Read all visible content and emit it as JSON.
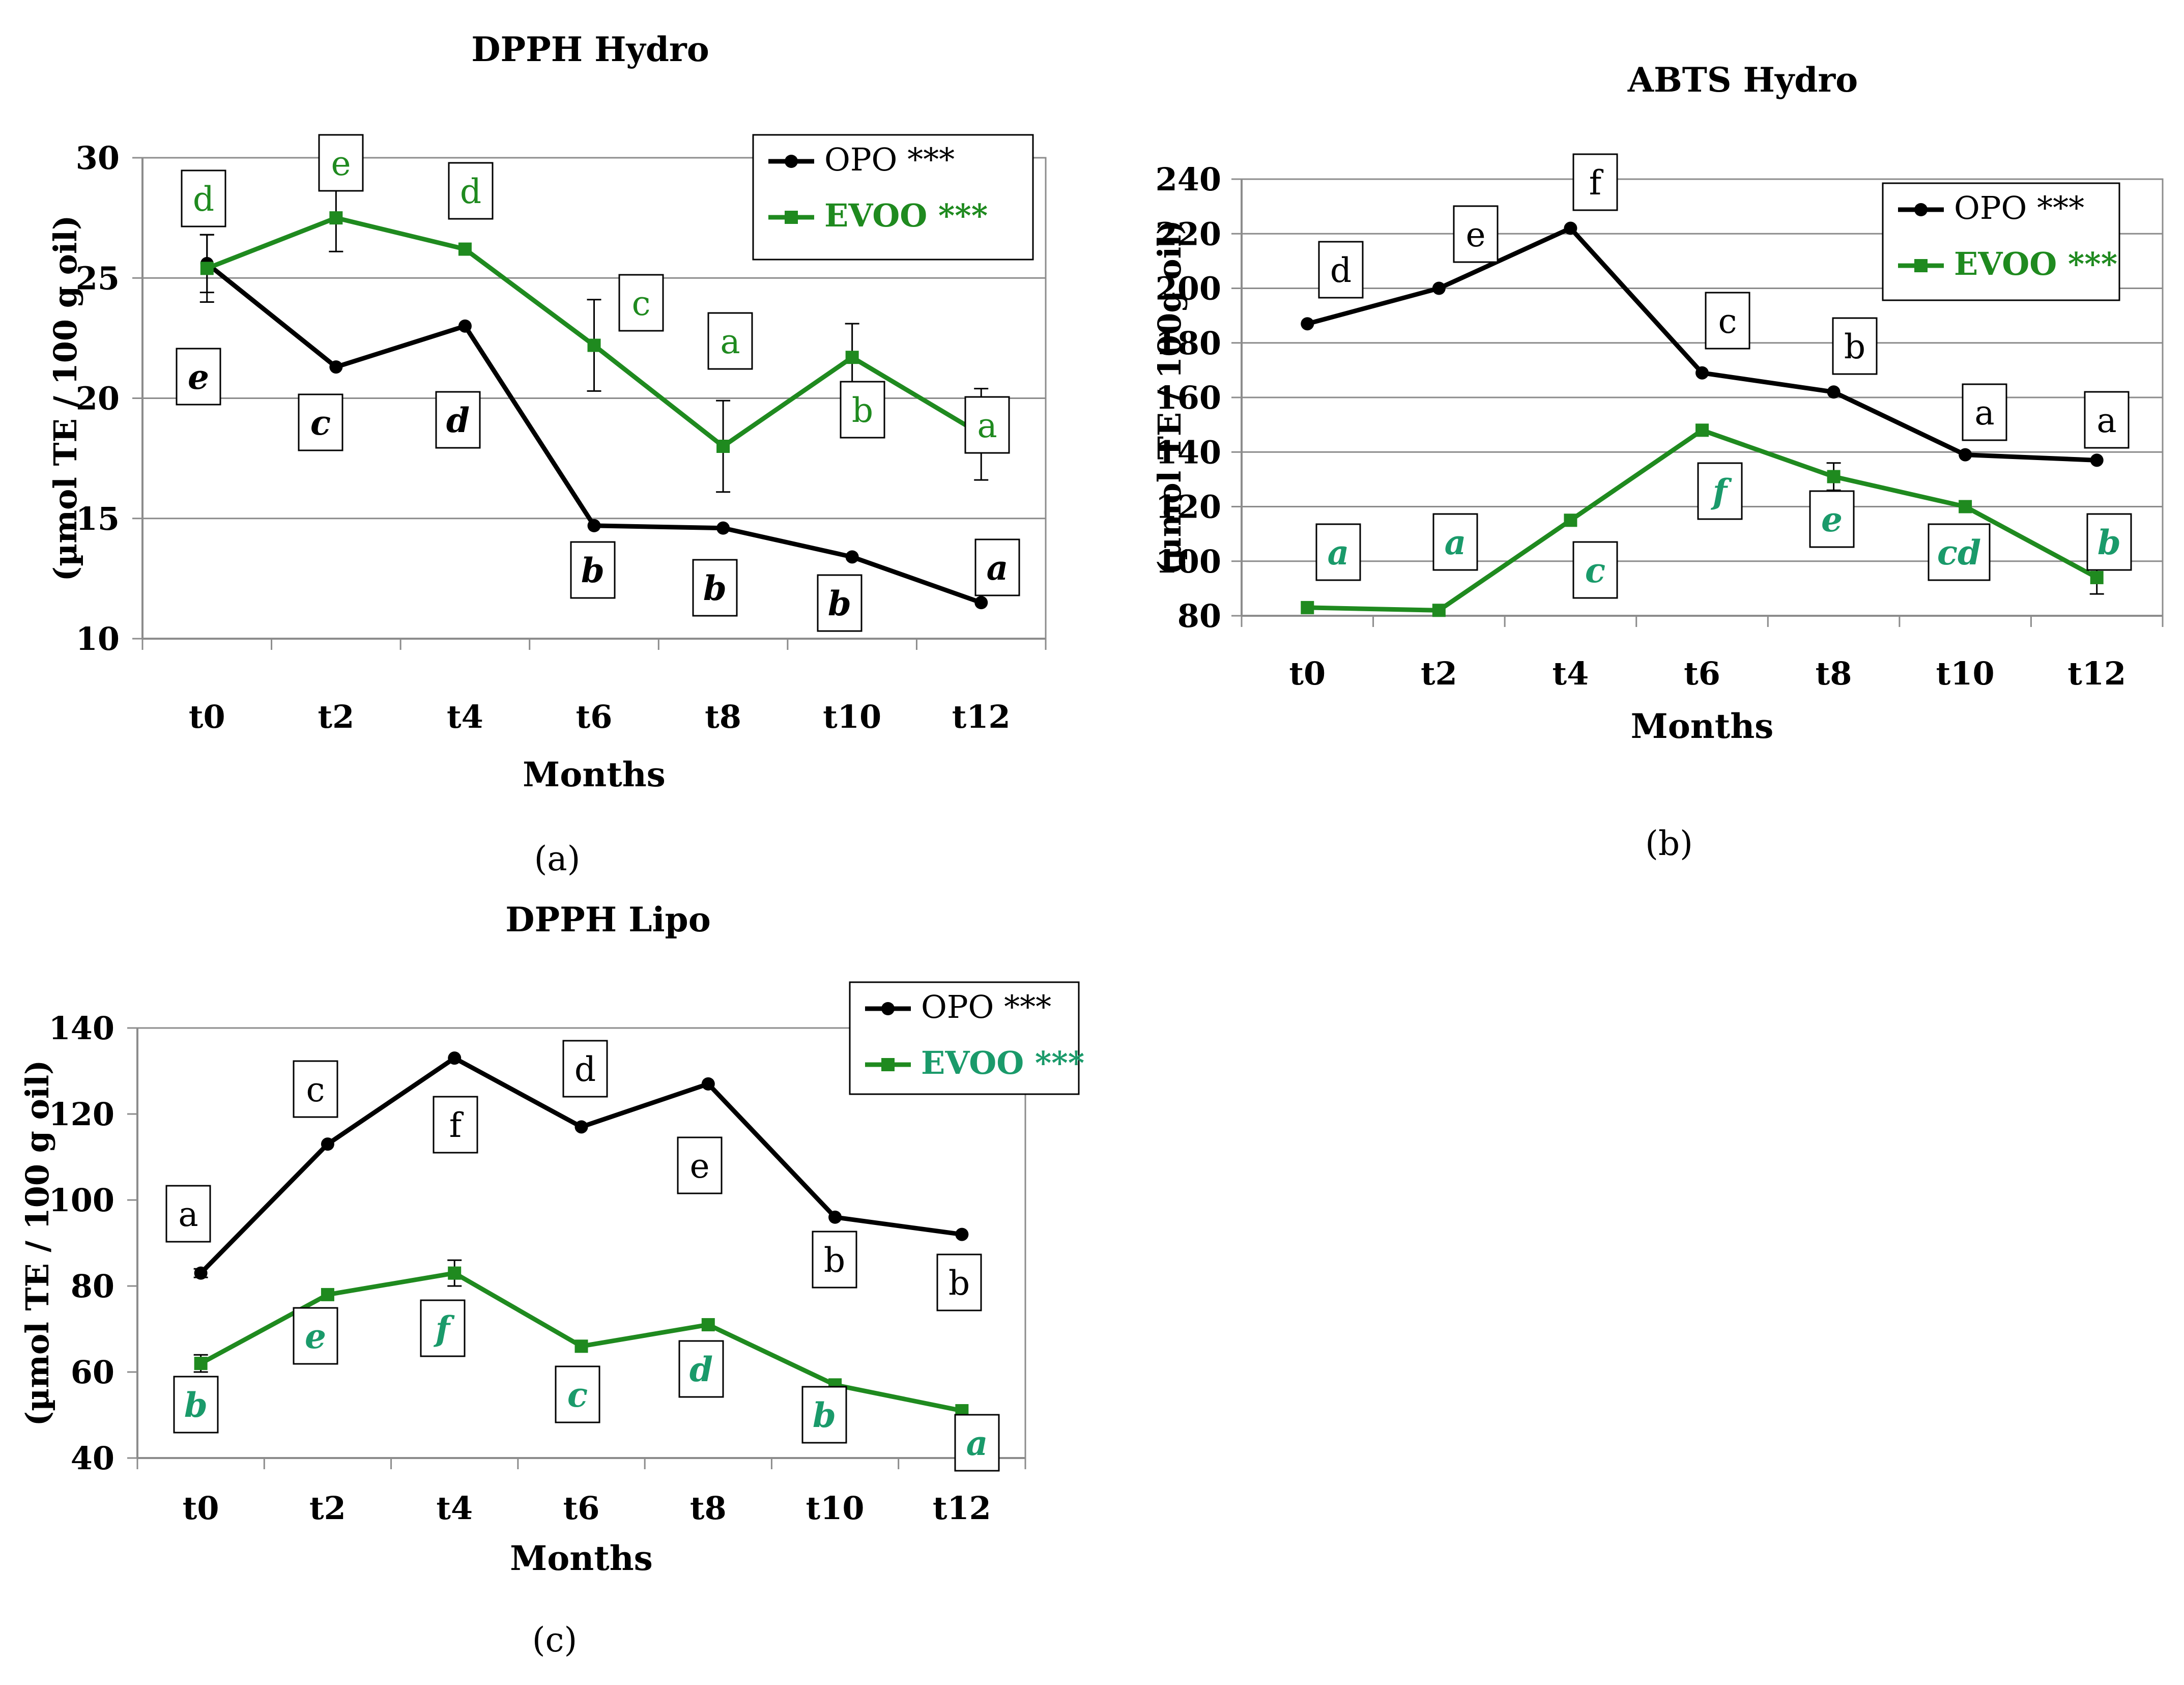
{
  "colors": {
    "opo": "#000000",
    "evoo": "#1f8a1f",
    "evoo_label_alt": "#1a9a6a",
    "grid": "#8c8c8c",
    "axis": "#8c8c8c"
  },
  "chart_data": [
    {
      "type": "line",
      "title": "DPPH Hydro",
      "panel_label": "(a)",
      "xlabel": "Months",
      "ylabel": "(µmol TE / 100 g oil)",
      "categories": [
        "t0",
        "t2",
        "t4",
        "t6",
        "t8",
        "t10",
        "t12"
      ],
      "ylim": [
        10,
        30
      ],
      "yticks": [
        10,
        15,
        20,
        25,
        30
      ],
      "grid": true,
      "legend_position": "top-right",
      "series": [
        {
          "name": "OPO ***",
          "key": "opo",
          "marker": "circle",
          "values": [
            25.6,
            21.3,
            23.0,
            14.7,
            14.6,
            13.4,
            11.5
          ],
          "errors": [
            1.2,
            0,
            0,
            0,
            0,
            0,
            0
          ],
          "letters": [
            "e",
            "c",
            "d",
            "b",
            "b",
            "b",
            "a"
          ],
          "letters_italic": true
        },
        {
          "name": "EVOO ***",
          "key": "evoo",
          "marker": "square",
          "values": [
            25.4,
            27.5,
            26.2,
            22.2,
            18.0,
            21.7,
            18.5
          ],
          "errors": [
            1.4,
            1.4,
            0,
            1.9,
            1.9,
            1.4,
            1.9
          ],
          "letters": [
            "d",
            "e",
            "d",
            "c",
            "a",
            "b",
            "a"
          ],
          "letters_italic": false
        }
      ]
    },
    {
      "type": "line",
      "title": "ABTS Hydro",
      "panel_label": "(b)",
      "xlabel": "Months",
      "ylabel": "(µmol TE / 100g oil)",
      "categories": [
        "t0",
        "t2",
        "t4",
        "t6",
        "t8",
        "t10",
        "t12"
      ],
      "ylim": [
        80,
        240
      ],
      "yticks": [
        80,
        100,
        120,
        140,
        160,
        180,
        200,
        220,
        240
      ],
      "grid": true,
      "legend_position": "top-right",
      "series": [
        {
          "name": "OPO ***",
          "key": "opo",
          "marker": "circle",
          "values": [
            187,
            200,
            222,
            169,
            162,
            139,
            137
          ],
          "errors": [
            0,
            0,
            0,
            0,
            0,
            0,
            0
          ],
          "letters": [
            "d",
            "e",
            "f",
            "c",
            "b",
            "a",
            "a"
          ],
          "letters_italic": false
        },
        {
          "name": "EVOO ***",
          "key": "evoo",
          "marker": "square",
          "values": [
            83,
            82,
            115,
            148,
            131,
            120,
            94
          ],
          "errors": [
            0,
            0,
            0,
            0,
            5,
            0,
            6
          ],
          "letters": [
            "a",
            "a",
            "c",
            "f",
            "e",
            "cd",
            "b"
          ],
          "letters_italic": true
        }
      ]
    },
    {
      "type": "line",
      "title": "DPPH Lipo",
      "panel_label": "(c)",
      "xlabel": "Months",
      "ylabel": "(µmol TE / 100 g oil)",
      "categories": [
        "t0",
        "t2",
        "t4",
        "t6",
        "t8",
        "t10",
        "t12"
      ],
      "ylim": [
        40,
        140
      ],
      "yticks": [
        40,
        60,
        80,
        100,
        120,
        140
      ],
      "grid": false,
      "legend_position": "top-right",
      "series": [
        {
          "name": "OPO ***",
          "key": "opo",
          "marker": "circle",
          "values": [
            83,
            113,
            133,
            117,
            127,
            96,
            92
          ],
          "errors": [
            1,
            0,
            0,
            0,
            0,
            0,
            0
          ],
          "letters": [
            "a",
            "c",
            "f",
            "d",
            "e",
            "b",
            "b"
          ],
          "letters_italic": false
        },
        {
          "name": "EVOO ***",
          "key": "evoo",
          "marker": "square",
          "values": [
            62,
            78,
            83,
            66,
            71,
            57,
            51
          ],
          "errors": [
            2,
            0,
            3,
            0,
            0,
            0,
            0
          ],
          "letters": [
            "b",
            "e",
            "f",
            "c",
            "d",
            "b",
            "a"
          ],
          "letters_italic": true
        }
      ]
    }
  ]
}
